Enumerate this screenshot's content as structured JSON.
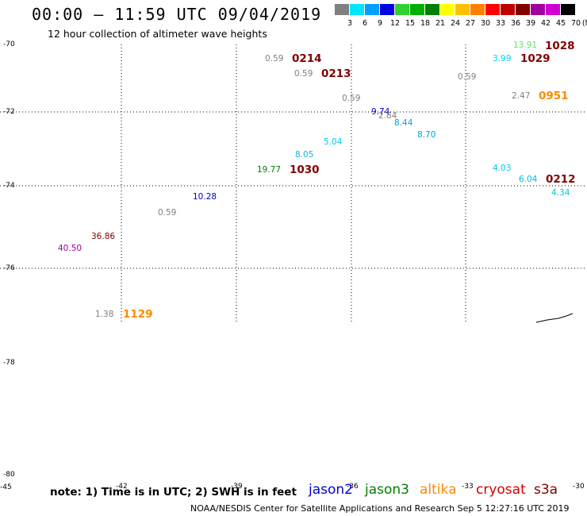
{
  "header": {
    "title": "00:00 — 11:59 UTC 09/04/2019",
    "subtitle": "12 hour collection of altimeter wave heights"
  },
  "scale": {
    "colors": [
      "#808080",
      "#00e5ff",
      "#00a0ff",
      "#0000e0",
      "#30d030",
      "#00b000",
      "#008000",
      "#ffff00",
      "#ffc000",
      "#ff8000",
      "#ff0000",
      "#c00000",
      "#800000",
      "#a000a0",
      "#d000d0",
      "#000000"
    ],
    "labels": [
      "3",
      "6",
      "9",
      "12",
      "15",
      "18",
      "21",
      "24",
      "27",
      "30",
      "33",
      "36",
      "39",
      "42",
      "45",
      "70"
    ],
    "unit": "(ft)"
  },
  "map": {
    "lat_labels": [
      "-70",
      "-72",
      "-74",
      "-76",
      "-78",
      "-80"
    ],
    "corner_label": "-45",
    "lon_labels": [
      "-42",
      "-39",
      "-36",
      "-33",
      "-30"
    ],
    "observations": [
      {
        "text": "13.91",
        "color": "#66dd66"
      },
      {
        "text": "1028",
        "color": "#800000"
      },
      {
        "text": "0.59",
        "color": "#808080"
      },
      {
        "text": "0214",
        "color": "#800000"
      },
      {
        "text": "3.99",
        "color": "#00d0ff"
      },
      {
        "text": "1029",
        "color": "#800000"
      },
      {
        "text": "0.59",
        "color": "#808080"
      },
      {
        "text": "0213",
        "color": "#800000"
      },
      {
        "text": "0.59",
        "color": "#808080"
      },
      {
        "text": "2.47",
        "color": "#808080"
      },
      {
        "text": "0951",
        "color": "#ff8800"
      },
      {
        "text": "0.59",
        "color": "#808080"
      },
      {
        "text": "9.74",
        "color": "#0000cc"
      },
      {
        "text": "2.84",
        "color": "#808080"
      },
      {
        "text": "8.44",
        "color": "#00a0e0"
      },
      {
        "text": "8.70",
        "color": "#00a0e0"
      },
      {
        "text": "5.04",
        "color": "#00c8e8"
      },
      {
        "text": "8.05",
        "color": "#00b8e8"
      },
      {
        "text": "19.77",
        "color": "#008000"
      },
      {
        "text": "1030",
        "color": "#800000"
      },
      {
        "text": "4.03",
        "color": "#00c8e8"
      },
      {
        "text": "6.04",
        "color": "#00b8e8"
      },
      {
        "text": "0212",
        "color": "#800000"
      },
      {
        "text": "4.34",
        "color": "#00c8e8"
      },
      {
        "text": "10.28",
        "color": "#0000cc"
      },
      {
        "text": "0.59",
        "color": "#808080"
      },
      {
        "text": "36.86",
        "color": "#800000"
      },
      {
        "text": "40.50",
        "color": "#a000a0"
      },
      {
        "text": "1.38",
        "color": "#808080"
      },
      {
        "text": "1129",
        "color": "#ff8800"
      }
    ]
  },
  "footer": {
    "note": "note: 1) Time is in UTC; 2) SWH is in feet",
    "satellites": [
      {
        "name": "jason2",
        "color": "#0000cc"
      },
      {
        "name": "jason3",
        "color": "#008000"
      },
      {
        "name": "altika",
        "color": "#ff8800"
      },
      {
        "name": "cryosat",
        "color": "#cc0000"
      },
      {
        "name": "s3a",
        "color": "#800000"
      }
    ],
    "credit": "NOAA/NESDIS Center for Satellite Applications and Research   Sep  5 12:27:16 UTC 2019"
  }
}
